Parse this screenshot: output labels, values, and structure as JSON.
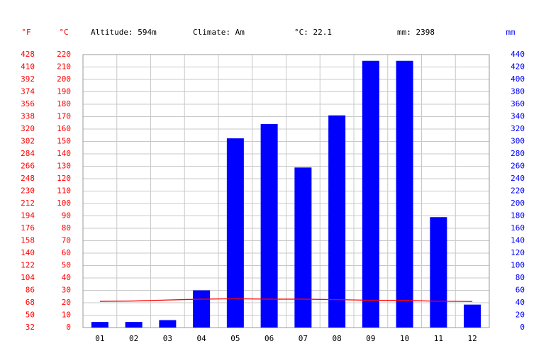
{
  "chart_data": {
    "type": "bar",
    "header": {
      "f_unit": "°F",
      "c_unit": "°C",
      "altitude": "Altitude: 594m",
      "climate": "Climate: Am",
      "mean_temp": "°C: 22.1",
      "total_precip": "mm: 2398",
      "mm_unit": "mm"
    },
    "categories": [
      "01",
      "02",
      "03",
      "04",
      "05",
      "06",
      "07",
      "08",
      "09",
      "10",
      "11",
      "12"
    ],
    "series": [
      {
        "type": "bar",
        "axis": "y2",
        "color": "#0000ff",
        "values": [
          9,
          9,
          12,
          60,
          305,
          328,
          258,
          342,
          430,
          430,
          178,
          37
        ]
      },
      {
        "type": "line",
        "axis": "y",
        "color": "#ff0000",
        "values": [
          21.1,
          21.4,
          22.2,
          22.9,
          23.2,
          22.9,
          22.9,
          22.5,
          22.0,
          21.9,
          21.2,
          21.0
        ]
      }
    ],
    "ylim": [
      0,
      220
    ],
    "yticks": [
      0,
      10,
      20,
      30,
      40,
      50,
      60,
      70,
      80,
      90,
      100,
      110,
      120,
      130,
      140,
      150,
      160,
      170,
      180,
      190,
      200,
      210,
      220
    ],
    "flim": [
      32,
      428
    ],
    "fticks": [
      32,
      50,
      68,
      86,
      104,
      122,
      140,
      158,
      176,
      194,
      212,
      230,
      248,
      266,
      284,
      302,
      320,
      338,
      356,
      374,
      392,
      410,
      428
    ],
    "y2lim": [
      0,
      440
    ],
    "y2ticks": [
      0,
      20,
      40,
      60,
      80,
      100,
      120,
      140,
      160,
      180,
      200,
      220,
      240,
      260,
      280,
      300,
      320,
      340,
      360,
      380,
      400,
      420,
      440
    ],
    "grid": true
  }
}
